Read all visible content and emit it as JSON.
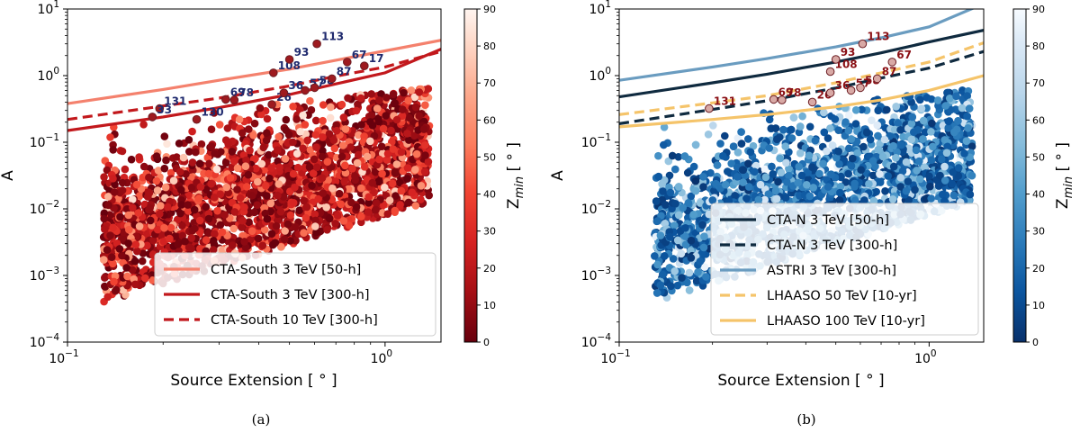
{
  "chart_data": [
    {
      "panel": "a",
      "type": "scatter",
      "caption": "(a)",
      "xlabel": "Source Extension [ ° ]",
      "ylabel": "A",
      "xscale": "log",
      "yscale": "log",
      "xlim": [
        0.1,
        1.5
      ],
      "ylim": [
        0.0001,
        10
      ],
      "xticks": [
        {
          "v": 0.1,
          "base": "10",
          "exp": "−1"
        },
        {
          "v": 1,
          "base": "10",
          "exp": "0"
        }
      ],
      "yticks": [
        {
          "v": 0.0001,
          "base": "10",
          "exp": "−4"
        },
        {
          "v": 0.001,
          "base": "10",
          "exp": "−3"
        },
        {
          "v": 0.01,
          "base": "10",
          "exp": "−2"
        },
        {
          "v": 0.1,
          "base": "10",
          "exp": "−1"
        },
        {
          "v": 1,
          "base": "10",
          "exp": "0"
        },
        {
          "v": 10,
          "base": "10",
          "exp": "1"
        }
      ],
      "colorbar": {
        "label_main": "Z",
        "label_sub": "min",
        "label_unit": " [ ° ]",
        "min": 0,
        "max": 90,
        "ticks": [
          0,
          10,
          20,
          30,
          40,
          50,
          60,
          70,
          80,
          90
        ],
        "colormap": "Reds_r"
      },
      "sensitivity_curves": [
        {
          "name": "CTA-South 3 TeV [50-h]",
          "color": "#f4816d",
          "style": "solid",
          "x": [
            0.1,
            0.2,
            0.3,
            0.5,
            0.7,
            1.0,
            1.5
          ],
          "y": [
            0.38,
            0.62,
            0.85,
            1.25,
            1.7,
            2.35,
            3.4
          ]
        },
        {
          "name": "CTA-South 3 TeV [300-h]",
          "color": "#c2181c",
          "style": "solid",
          "x": [
            0.1,
            0.2,
            0.3,
            0.5,
            0.7,
            1.0,
            1.5
          ],
          "y": [
            0.15,
            0.24,
            0.33,
            0.52,
            0.75,
            1.1,
            2.5
          ]
        },
        {
          "name": "CTA-South 10 TeV [300-h]",
          "color": "#c2181c",
          "style": "dashed",
          "x": [
            0.1,
            0.2,
            0.3,
            0.5,
            0.7,
            1.0,
            1.5
          ],
          "y": [
            0.22,
            0.35,
            0.46,
            0.7,
            0.98,
            1.35,
            2.3
          ]
        }
      ],
      "labeled_sources": [
        {
          "label": "131",
          "x": 0.195,
          "y": 0.32
        },
        {
          "label": "33",
          "x": 0.185,
          "y": 0.24
        },
        {
          "label": "130",
          "x": 0.255,
          "y": 0.22
        },
        {
          "label": "69",
          "x": 0.315,
          "y": 0.44
        },
        {
          "label": "78",
          "x": 0.335,
          "y": 0.43
        },
        {
          "label": "26",
          "x": 0.44,
          "y": 0.37
        },
        {
          "label": "36",
          "x": 0.48,
          "y": 0.55
        },
        {
          "label": "57",
          "x": 0.56,
          "y": 0.6
        },
        {
          "label": "58",
          "x": 0.6,
          "y": 0.66
        },
        {
          "label": "87",
          "x": 0.68,
          "y": 0.9
        },
        {
          "label": "108",
          "x": 0.445,
          "y": 1.1
        },
        {
          "label": "93",
          "x": 0.5,
          "y": 1.75
        },
        {
          "label": "113",
          "x": 0.61,
          "y": 3.0
        },
        {
          "label": "67",
          "x": 0.76,
          "y": 1.6
        },
        {
          "label": "17",
          "x": 0.86,
          "y": 1.4
        }
      ],
      "label_color": "#1f2a6e"
    },
    {
      "panel": "b",
      "type": "scatter",
      "caption": "(b)",
      "xlabel": "Source Extension [ ° ]",
      "ylabel": "A",
      "xscale": "log",
      "yscale": "log",
      "xlim": [
        0.1,
        1.5
      ],
      "ylim": [
        0.0001,
        10
      ],
      "xticks": [
        {
          "v": 0.1,
          "base": "10",
          "exp": "−1"
        },
        {
          "v": 1,
          "base": "10",
          "exp": "0"
        }
      ],
      "yticks": [
        {
          "v": 0.0001,
          "base": "10",
          "exp": "−4"
        },
        {
          "v": 0.001,
          "base": "10",
          "exp": "−3"
        },
        {
          "v": 0.01,
          "base": "10",
          "exp": "−2"
        },
        {
          "v": 0.1,
          "base": "10",
          "exp": "−1"
        },
        {
          "v": 1,
          "base": "10",
          "exp": "0"
        },
        {
          "v": 10,
          "base": "10",
          "exp": "1"
        }
      ],
      "colorbar": {
        "label_main": "Z",
        "label_sub": "min",
        "label_unit": " [ ° ]",
        "min": 0,
        "max": 90,
        "ticks": [
          0,
          10,
          20,
          30,
          40,
          50,
          60,
          70,
          80,
          90
        ],
        "colormap": "Blues_r"
      },
      "sensitivity_curves": [
        {
          "name": "CTA-N 3 TeV [50-h]",
          "color": "#0f2a3f",
          "style": "solid",
          "x": [
            0.1,
            0.2,
            0.3,
            0.5,
            0.7,
            1.0,
            1.5
          ],
          "y": [
            0.48,
            0.78,
            1.05,
            1.6,
            2.2,
            3.2,
            4.8
          ]
        },
        {
          "name": "CTA-N 3 TeV [300-h]",
          "color": "#0f2a3f",
          "style": "dashed",
          "x": [
            0.1,
            0.2,
            0.3,
            0.5,
            0.7,
            1.0,
            1.5
          ],
          "y": [
            0.19,
            0.31,
            0.42,
            0.65,
            0.92,
            1.3,
            2.3
          ]
        },
        {
          "name": "ASTRI 3 TeV [300-h]",
          "color": "#6a9cc0",
          "style": "solid",
          "x": [
            0.1,
            0.2,
            0.3,
            0.5,
            0.7,
            1.0,
            1.5
          ],
          "y": [
            0.85,
            1.35,
            1.8,
            2.7,
            3.7,
            5.4,
            12.0
          ]
        },
        {
          "name": "LHAASO 50 TeV [10-yr]",
          "color": "#f5c46a",
          "style": "dashed",
          "x": [
            0.1,
            0.2,
            0.3,
            0.5,
            0.7,
            1.0,
            1.5
          ],
          "y": [
            0.26,
            0.39,
            0.5,
            0.78,
            1.1,
            1.6,
            3.1
          ]
        },
        {
          "name": "LHAASO 100 TeV [10-yr]",
          "color": "#f5c46a",
          "style": "solid",
          "x": [
            0.1,
            0.2,
            0.3,
            0.5,
            0.7,
            1.0,
            1.5
          ],
          "y": [
            0.17,
            0.22,
            0.26,
            0.34,
            0.43,
            0.6,
            1.0
          ]
        }
      ],
      "labeled_sources": [
        {
          "label": "131",
          "x": 0.195,
          "y": 0.32
        },
        {
          "label": "69",
          "x": 0.315,
          "y": 0.44
        },
        {
          "label": "78",
          "x": 0.335,
          "y": 0.43
        },
        {
          "label": "26",
          "x": 0.42,
          "y": 0.4
        },
        {
          "label": "36",
          "x": 0.48,
          "y": 0.55
        },
        {
          "label": "57",
          "x": 0.56,
          "y": 0.6
        },
        {
          "label": "58",
          "x": 0.6,
          "y": 0.66
        },
        {
          "label": "87",
          "x": 0.68,
          "y": 0.9
        },
        {
          "label": "108",
          "x": 0.48,
          "y": 1.15
        },
        {
          "label": "93",
          "x": 0.5,
          "y": 1.75
        },
        {
          "label": "113",
          "x": 0.61,
          "y": 3.0
        },
        {
          "label": "67",
          "x": 0.76,
          "y": 1.6
        }
      ],
      "label_color": "#8a0f14"
    }
  ]
}
